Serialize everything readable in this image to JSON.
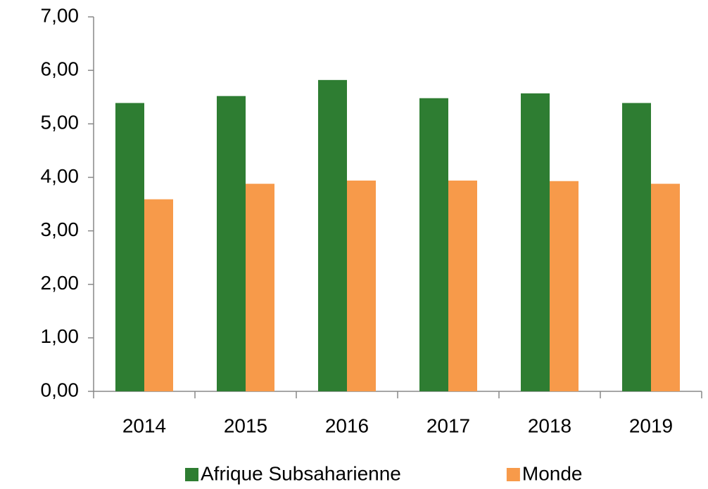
{
  "chart_data": {
    "type": "bar",
    "categories": [
      "2014",
      "2015",
      "2016",
      "2017",
      "2018",
      "2019"
    ],
    "series": [
      {
        "name": "Afrique Subsaharienne",
        "color": "#2e7d32",
        "values": [
          5.39,
          5.52,
          5.82,
          5.48,
          5.57,
          5.39
        ]
      },
      {
        "name": "Monde",
        "color": "#f79a4a",
        "values": [
          3.59,
          3.88,
          3.94,
          3.94,
          3.93,
          3.88
        ]
      }
    ],
    "ylim": [
      0,
      7
    ],
    "yticks": [
      {
        "value": 0,
        "label": "0,00"
      },
      {
        "value": 1,
        "label": "1,00"
      },
      {
        "value": 2,
        "label": "2,00"
      },
      {
        "value": 3,
        "label": "3,00"
      },
      {
        "value": 4,
        "label": "4,00"
      },
      {
        "value": 5,
        "label": "5,00"
      },
      {
        "value": 6,
        "label": "6,00"
      },
      {
        "value": 7,
        "label": "7,00"
      }
    ],
    "grid": false,
    "legend": "bottom"
  }
}
